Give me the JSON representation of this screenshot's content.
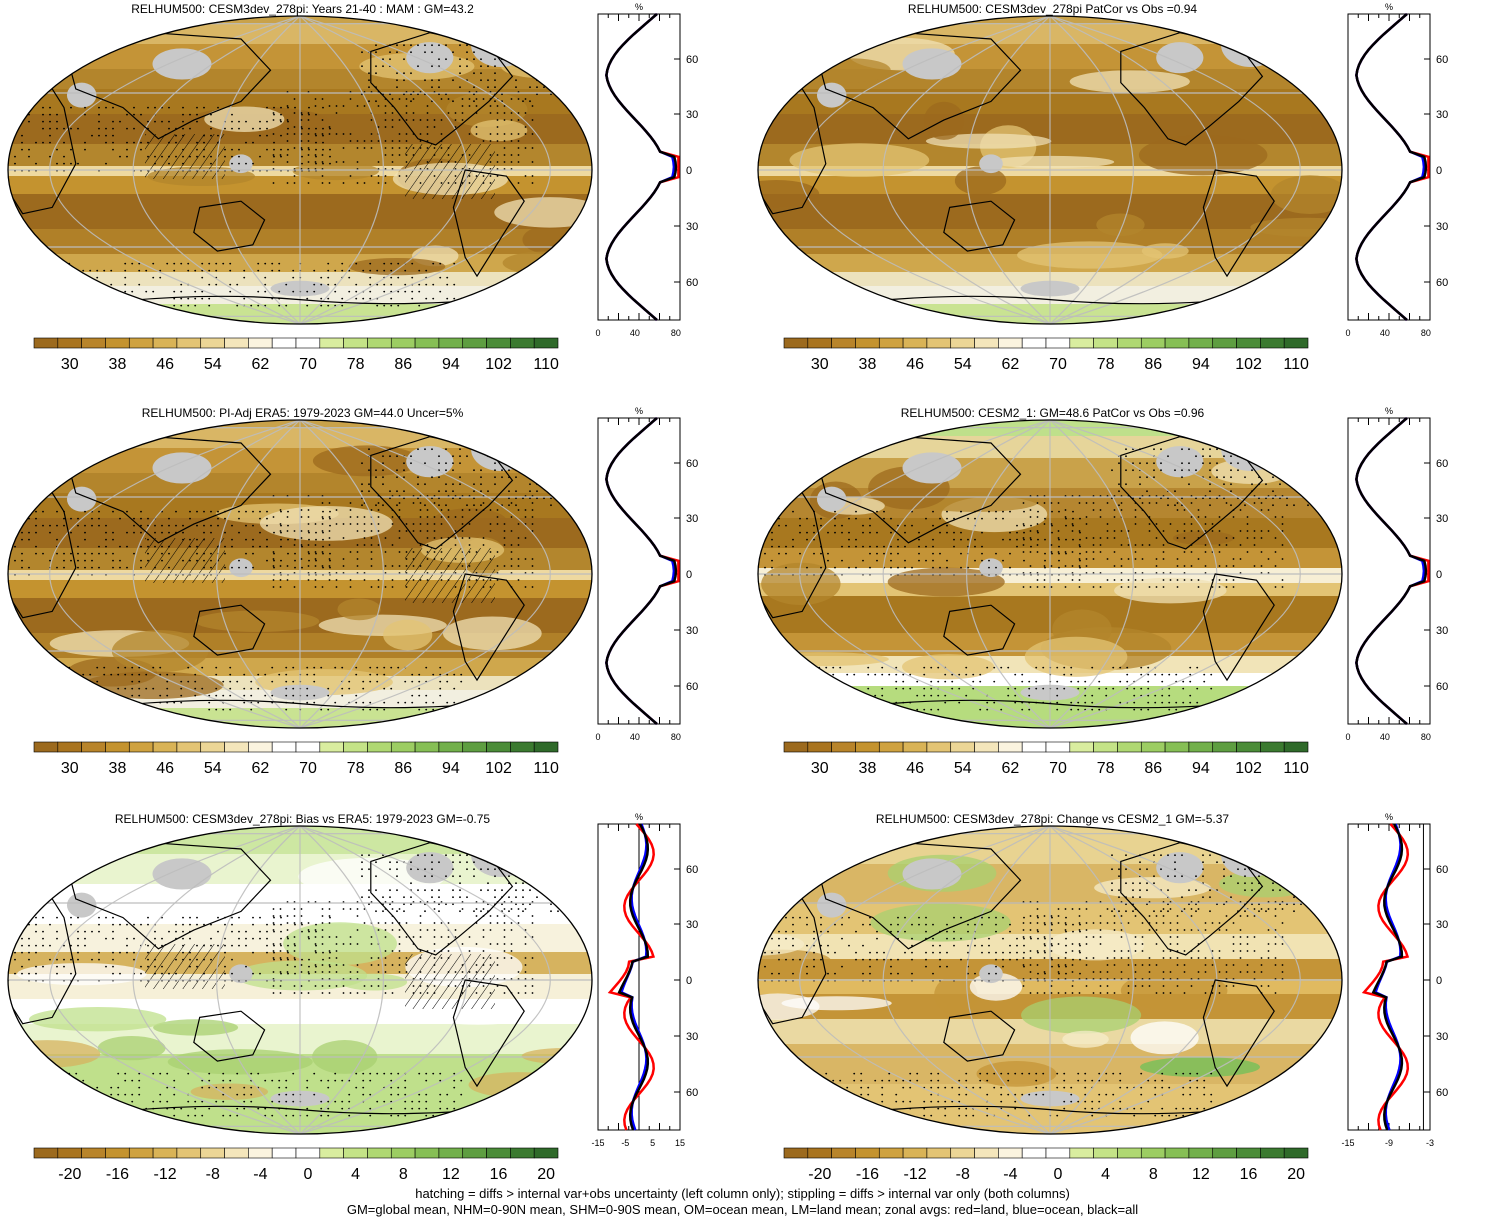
{
  "panels": [
    {
      "title": "RELHUM500: CESM3dev_278pi: Years 21-40 : MAM : GM=43.2",
      "kind": "abs",
      "stipple": true,
      "hatch": true,
      "zonal_ticks_x": [
        "0",
        "40",
        "80"
      ],
      "zonal_unit": "%",
      "zonal_lat_labels": [
        "60N",
        "30N",
        "0",
        "30S",
        "60S"
      ]
    },
    {
      "title": "RELHUM500: CESM3dev_278pi PatCor vs Obs =0.94",
      "kind": "abs",
      "stipple": false,
      "hatch": false,
      "zonal_ticks_x": [
        "0",
        "40",
        "80"
      ],
      "zonal_unit": "%",
      "zonal_lat_labels": [
        "60N",
        "30N",
        "0",
        "30S",
        "60S"
      ]
    },
    {
      "title": "RELHUM500: PI-Adj ERA5: 1979-2023 GM=44.0 Uncer=5%",
      "kind": "abs",
      "stipple": true,
      "hatch": true,
      "zonal_ticks_x": [
        "0",
        "40",
        "80"
      ],
      "zonal_unit": "%",
      "zonal_lat_labels": [
        "60N",
        "30N",
        "0",
        "30S",
        "60S"
      ]
    },
    {
      "title": "RELHUM500: CESM2_1: GM=48.6 PatCor vs Obs =0.96",
      "kind": "abs2",
      "stipple": true,
      "hatch": false,
      "zonal_ticks_x": [
        "0",
        "40",
        "80"
      ],
      "zonal_unit": "%",
      "zonal_lat_labels": [
        "60N",
        "30N",
        "0",
        "30S",
        "60S"
      ]
    },
    {
      "title": "RELHUM500: CESM3dev_278pi: Bias vs ERA5: 1979-2023 GM=-0.75",
      "kind": "diff",
      "stipple": true,
      "hatch": true,
      "zonal_ticks_x": [
        "-15",
        "-5",
        "5",
        "15"
      ],
      "zonal_unit": "%",
      "zonal_lat_labels": [
        "60N",
        "30N",
        "0",
        "30S",
        "60S"
      ]
    },
    {
      "title": "RELHUM500: CESM3dev_278pi: Change vs CESM2_1 GM=-5.37",
      "kind": "change",
      "stipple": true,
      "hatch": false,
      "zonal_ticks_x": [
        "-15",
        "-9",
        "-3"
      ],
      "zonal_unit": "%",
      "zonal_lat_labels": [
        "60N",
        "30N",
        "0",
        "30S",
        "60S"
      ]
    }
  ],
  "colorbars": {
    "abs": {
      "labels": [
        "30",
        "38",
        "46",
        "54",
        "62",
        "70",
        "78",
        "86",
        "94",
        "102",
        "110"
      ],
      "colors": [
        "#9c6a1e",
        "#a9741f",
        "#b8842a",
        "#c4932f",
        "#cfa240",
        "#d9b356",
        "#e3c474",
        "#ecd696",
        "#f4e6bb",
        "#fbf4df",
        "#ffffff",
        "#ffffff",
        "#d9ed9f",
        "#c4e387",
        "#afd872",
        "#9ccd62",
        "#86bf55",
        "#72b04b",
        "#5e9e41",
        "#4b8c38",
        "#3b7a30",
        "#2f6a2a"
      ]
    },
    "diff": {
      "labels": [
        "-20",
        "-16",
        "-12",
        "-8",
        "-4",
        "0",
        "4",
        "8",
        "12",
        "16",
        "20"
      ],
      "colors": [
        "#9c6a1e",
        "#a9741f",
        "#b8842a",
        "#c4932f",
        "#cfa240",
        "#d9b356",
        "#e3c474",
        "#ecd696",
        "#f4e6bb",
        "#fbf4df",
        "#ffffff",
        "#ffffff",
        "#d9ed9f",
        "#c4e387",
        "#afd872",
        "#9ccd62",
        "#86bf55",
        "#72b04b",
        "#5e9e41",
        "#4b8c38",
        "#3b7a30",
        "#2f6a2a"
      ]
    }
  },
  "footer": {
    "line1": "hatching = diffs > internal var+obs uncertainty (left column only); stippling = diffs > internal var only (both columns)",
    "line2": "GM=global mean, NHM=0-90N mean, SHM=0-90S mean, OM=ocean mean, LM=land mean; zonal avgs: red=land, blue=ocean, black=all"
  },
  "colors": {
    "land": "#ff0000",
    "ocean": "#0000ff",
    "all": "#000000",
    "masked": "#c8c8c8"
  }
}
